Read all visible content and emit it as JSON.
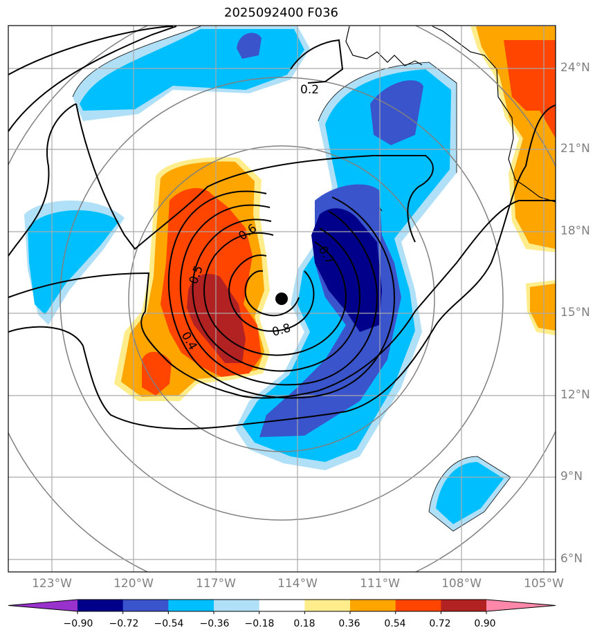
{
  "title": "2025092400 F036",
  "lat_labels": [
    "24°N",
    "21°N",
    "18°N",
    "15°N",
    "12°N",
    "9°N",
    "6°N"
  ],
  "lon_labels": [
    "123°W",
    "120°W",
    "117°W",
    "114°W",
    "111°W",
    "108°W",
    "105°W"
  ],
  "contour_labels": [
    "0.2",
    "0.5",
    "0.6",
    "0.7",
    "0.8",
    "0.4"
  ],
  "colorbar": {
    "ticks": [
      "−0.90",
      "−0.72",
      "−0.54",
      "−0.36",
      "−0.18",
      "0.18",
      "0.36",
      "0.54",
      "0.72",
      "0.90"
    ],
    "colors": [
      "#9932cc",
      "#00008b",
      "#3a54cc",
      "#00bfff",
      "#b0e0f8",
      "#ffffff",
      "#ffec8b",
      "#ffa500",
      "#ff4500",
      "#b22222",
      "#ff88aa"
    ]
  },
  "center_marker": "storm-center-dot"
}
